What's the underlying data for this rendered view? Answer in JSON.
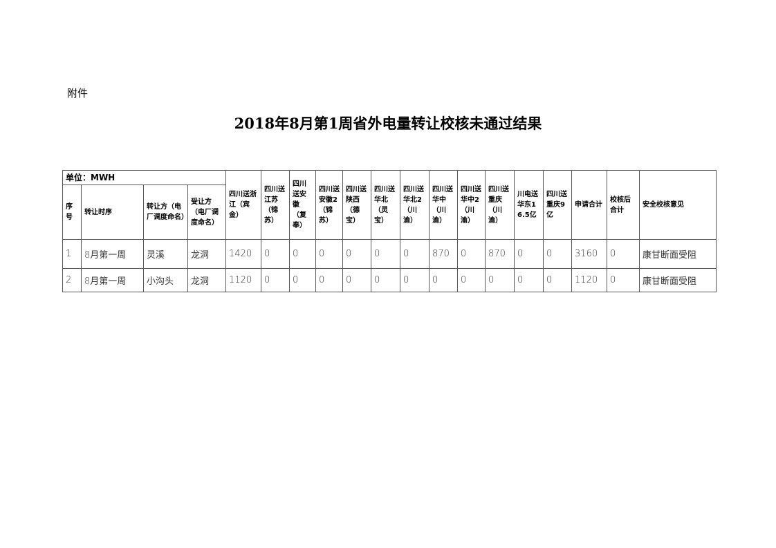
{
  "attachment_label": "附件",
  "title": "2018年8月第1周省外电量转让校核未通过结果",
  "table": {
    "unit": "单位：MWH",
    "headers": [
      "序号",
      "转让时序",
      "转让方（电厂调度命名）",
      "受让方（电厂调度命名）",
      "四川送浙江（宾金）",
      "四川送江苏（锦苏）",
      "四川送安徽（复奉）",
      "四川送安徽2（锦苏）",
      "四川送陕西（德宝）",
      "四川送华北（灵宝）",
      "四川送华北2（川渝）",
      "四川送华中（川渝）",
      "四川送华中2（川渝）",
      "四川送重庆（川渝）",
      "川电送华东16.5亿",
      "四川送重庆9亿",
      "申请合计",
      "校核后合计",
      "安全校核意见"
    ],
    "rows": [
      [
        "1",
        "8月第一周",
        "灵溪",
        "龙洞",
        "1420",
        "0",
        "0",
        "0",
        "0",
        "0",
        "0",
        "870",
        "0",
        "870",
        "0",
        "0",
        "3160",
        "0",
        "康甘断面受阻"
      ],
      [
        "2",
        "8月第一周",
        "小沟头",
        "龙洞",
        "1120",
        "0",
        "0",
        "0",
        "0",
        "0",
        "0",
        "0",
        "0",
        "0",
        "0",
        "0",
        "1120",
        "0",
        "康甘断面受阻"
      ]
    ]
  }
}
